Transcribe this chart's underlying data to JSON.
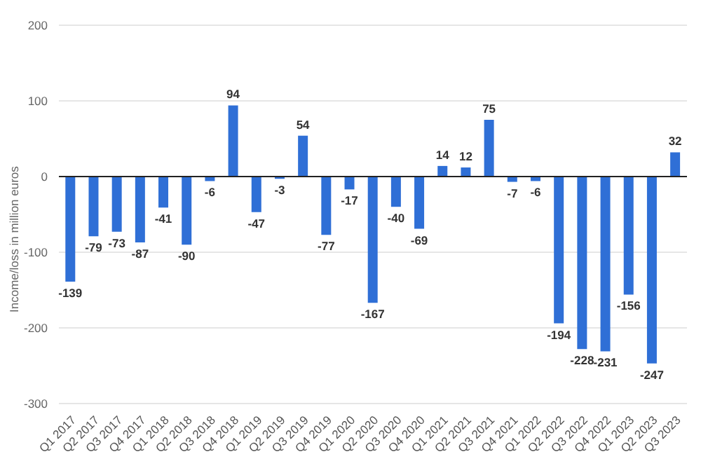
{
  "chart_data": {
    "type": "bar",
    "ylabel": "Income/loss in million euros",
    "categories": [
      "Q1 2017",
      "Q2 2017",
      "Q3 2017",
      "Q4 2017",
      "Q1 2018",
      "Q2 2018",
      "Q3 2018",
      "Q4 2018",
      "Q1 2019",
      "Q2 2019",
      "Q3 2019",
      "Q4 2019",
      "Q1 2020",
      "Q2 2020",
      "Q3 2020",
      "Q4 2020",
      "Q1 2021",
      "Q2 2021",
      "Q3 2021",
      "Q4 2021",
      "Q1 2022",
      "Q2 2022",
      "Q3 2022",
      "Q4 2022",
      "Q1 2023",
      "Q2 2023",
      "Q3 2023"
    ],
    "values": [
      -139,
      -79,
      -73,
      -87,
      -41,
      -90,
      -6,
      94,
      -47,
      -3,
      54,
      -77,
      -17,
      -167,
      -40,
      -69,
      14,
      12,
      75,
      -7,
      -6,
      -194,
      -228,
      -231,
      -156,
      -247,
      32
    ],
    "color": "#2f6fd6",
    "ylim": [
      -300,
      200
    ],
    "yticks": [
      -300,
      -200,
      -100,
      0,
      100,
      200
    ],
    "grid": "y",
    "data_labels": true
  }
}
